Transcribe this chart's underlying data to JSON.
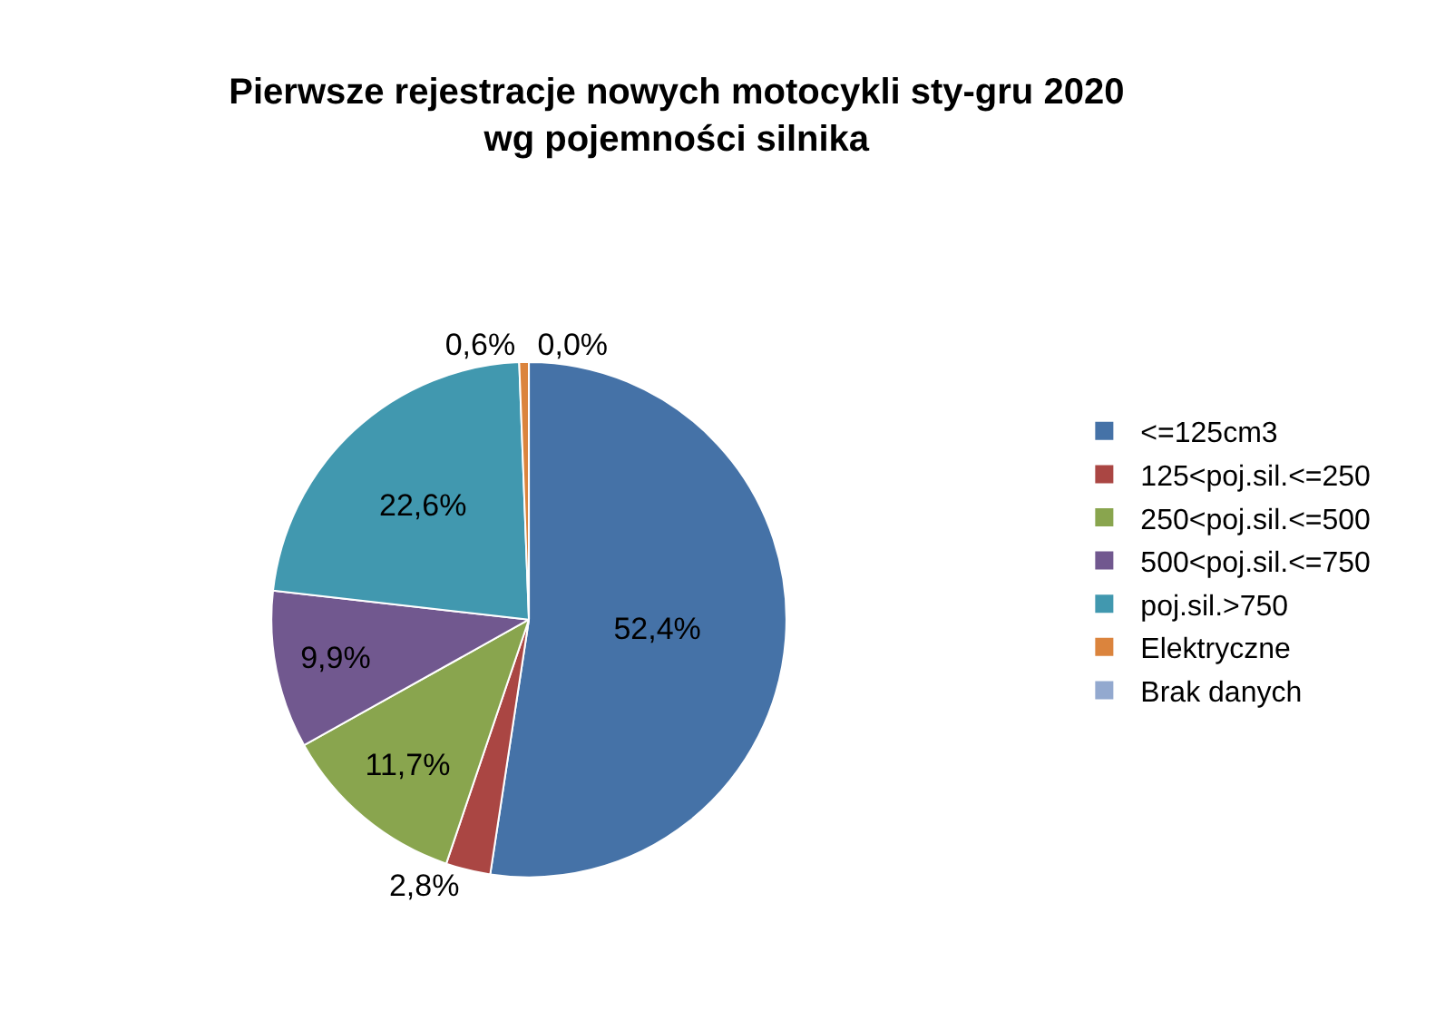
{
  "chart_data": {
    "type": "pie",
    "title": "Pierwsze rejestracje nowych motocykli sty-gru 2020\nwg pojemności silnika",
    "categories": [
      "<=125cm3",
      "125<poj.sil.<=250",
      "250<poj.sil.<=500",
      "500<poj.sil.<=750",
      "poj.sil.>750",
      "Elektryczne",
      "Brak danych"
    ],
    "values": [
      52.4,
      2.8,
      11.7,
      9.9,
      22.6,
      0.6,
      0.0
    ],
    "value_labels": [
      "52,4%",
      "2,8%",
      "11,7%",
      "9,9%",
      "22,6%",
      "0,6%",
      "0,0%"
    ],
    "colors": [
      "#4572a7",
      "#aa4643",
      "#89a54e",
      "#71588f",
      "#4198af",
      "#db843d",
      "#93a9cf"
    ],
    "legend": "right"
  }
}
